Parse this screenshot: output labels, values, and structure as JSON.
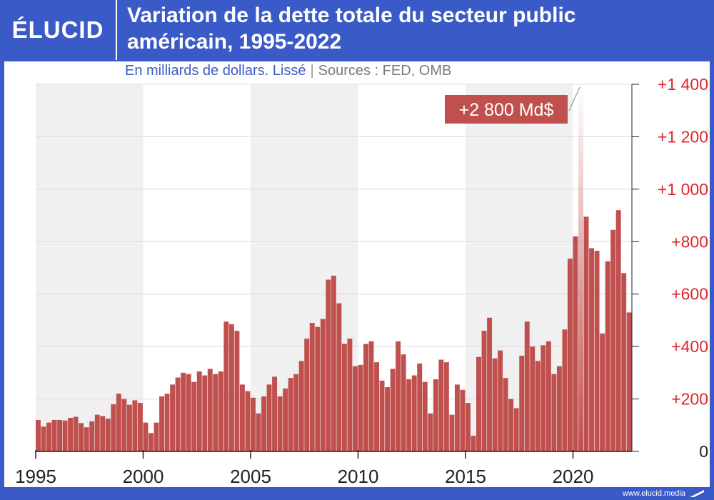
{
  "header": {
    "logo": "ÉLUCID",
    "title_line1": "Variation de la dette totale du secteur public",
    "title_line2": "américain, 1995-2022"
  },
  "subtitle": {
    "units": "En milliards de dollars. Lissé",
    "separator": "|",
    "sources": "Sources : FED, OMB"
  },
  "footer": {
    "url": "www.elucid.media"
  },
  "colors": {
    "background": "#3a5bc7",
    "bar": "#c0504d",
    "plot_band": "#f0f0f0",
    "axis_text": "#e0262a"
  },
  "chart_data": {
    "type": "bar",
    "title": "Variation de la dette totale du secteur public américain, 1995-2022",
    "subtitle": "En milliards de dollars. Lissé",
    "xlabel": "",
    "ylabel": "",
    "x_start": 1995.0,
    "x_step": 0.25,
    "x_ticks": [
      "1995",
      "2000",
      "2005",
      "2010",
      "2015",
      "2020"
    ],
    "y_ticks": [
      "0",
      "+200",
      "+400",
      "+600",
      "+800",
      "+1 000",
      "+1 200",
      "+1 400"
    ],
    "ylim": [
      0,
      1400
    ],
    "y_axis_side": "right",
    "annotation": {
      "text": "+2 800 Md$",
      "year": 2020.25,
      "value": 2800
    },
    "values": [
      120,
      95,
      110,
      120,
      120,
      118,
      128,
      132,
      108,
      92,
      115,
      140,
      135,
      125,
      180,
      220,
      200,
      178,
      195,
      185,
      110,
      70,
      110,
      210,
      220,
      255,
      282,
      300,
      295,
      265,
      305,
      290,
      315,
      295,
      305,
      495,
      485,
      460,
      255,
      230,
      205,
      145,
      210,
      255,
      285,
      210,
      240,
      280,
      295,
      345,
      430,
      490,
      475,
      505,
      655,
      670,
      565,
      410,
      430,
      325,
      330,
      410,
      420,
      340,
      270,
      245,
      315,
      420,
      370,
      275,
      290,
      335,
      265,
      145,
      275,
      350,
      340,
      140,
      255,
      235,
      185,
      60,
      360,
      460,
      510,
      355,
      385,
      280,
      200,
      165,
      365,
      495,
      400,
      345,
      405,
      420,
      295,
      325,
      465,
      735,
      820,
      2800,
      895,
      775,
      765,
      450,
      725,
      845,
      920,
      680,
      530
    ]
  }
}
